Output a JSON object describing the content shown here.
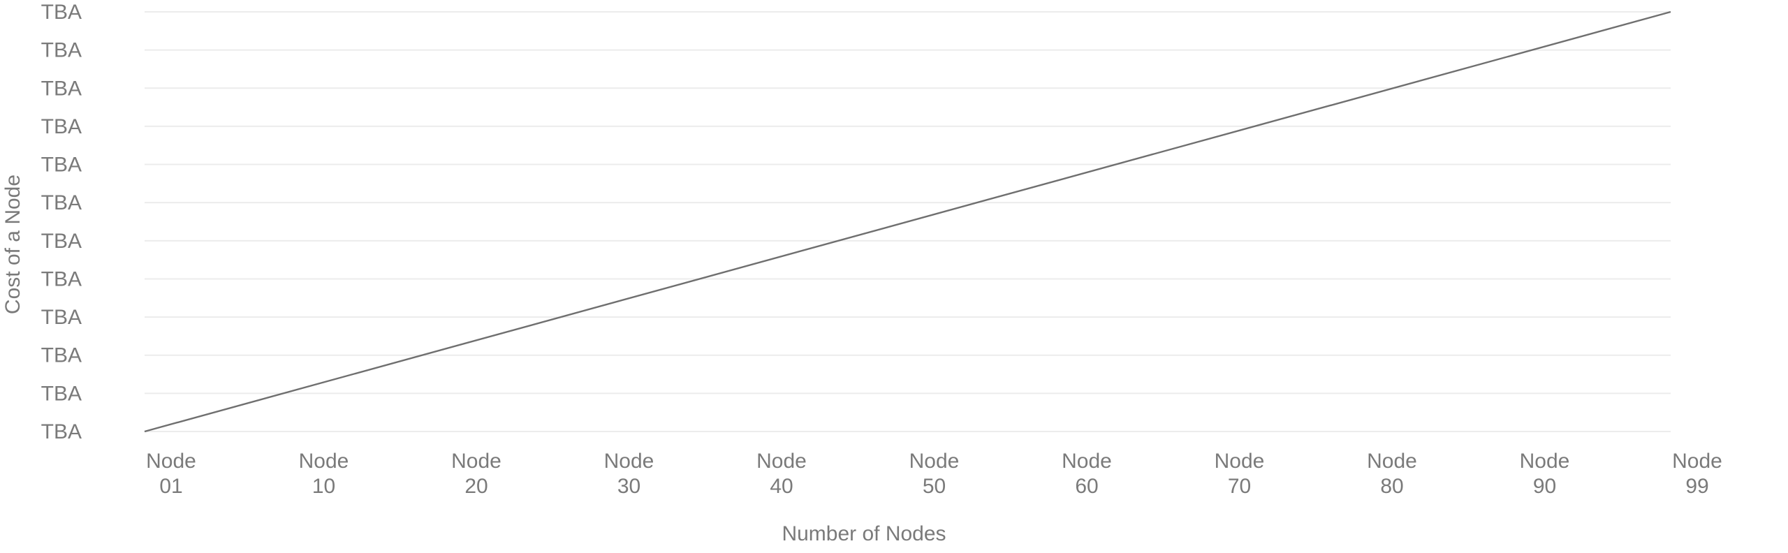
{
  "chart_data": {
    "type": "line",
    "title": "",
    "xlabel": "Number of Nodes",
    "ylabel": "Cost of a Node",
    "categories": [
      [
        "Node",
        "01"
      ],
      [
        "Node",
        "10"
      ],
      [
        "Node",
        "20"
      ],
      [
        "Node",
        "30"
      ],
      [
        "Node",
        "40"
      ],
      [
        "Node",
        "50"
      ],
      [
        "Node",
        "60"
      ],
      [
        "Node",
        "70"
      ],
      [
        "Node",
        "80"
      ],
      [
        "Node",
        "90"
      ],
      [
        "Node",
        "99"
      ]
    ],
    "y_tick_labels": [
      "TBA",
      "TBA",
      "TBA",
      "TBA",
      "TBA",
      "TBA",
      "TBA",
      "TBA",
      "TBA",
      "TBA",
      "TBA",
      "TBA"
    ],
    "series": [
      {
        "x": [
          1,
          99
        ],
        "y": [
          0,
          11
        ],
        "color": "#6f6f6f"
      }
    ],
    "xlim": [
      1,
      99
    ],
    "ylim": [
      0,
      11
    ],
    "grid": true,
    "legend": "none"
  }
}
